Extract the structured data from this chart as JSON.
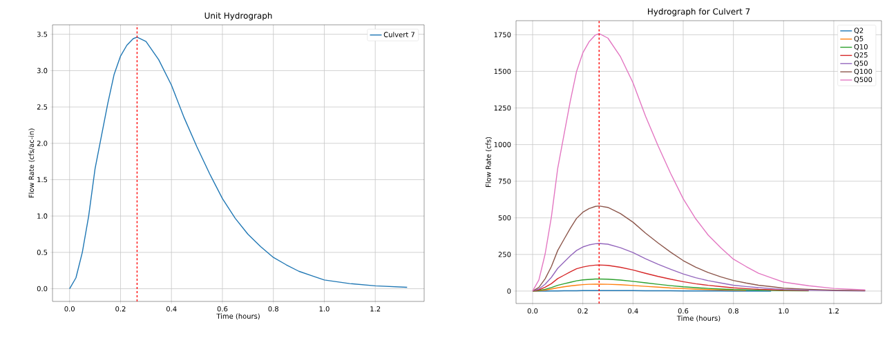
{
  "chart_data": [
    {
      "type": "line",
      "title": "Unit Hydrograph",
      "xlabel": "Time (hours)",
      "ylabel": "Flow Rate (cfs/ac-in)",
      "x": [
        0,
        0.025,
        0.05,
        0.075,
        0.1,
        0.125,
        0.15,
        0.175,
        0.2,
        0.225,
        0.25,
        0.265,
        0.3,
        0.35,
        0.4,
        0.45,
        0.5,
        0.55,
        0.6,
        0.65,
        0.7,
        0.75,
        0.8,
        0.85,
        0.9,
        0.95,
        1.0,
        1.1,
        1.2,
        1.325
      ],
      "series": [
        {
          "name": "Culvert 7",
          "color": "#1f77b4",
          "values": [
            0,
            0.15,
            0.5,
            1.0,
            1.65,
            2.1,
            2.55,
            2.95,
            3.2,
            3.35,
            3.44,
            3.46,
            3.4,
            3.15,
            2.8,
            2.35,
            1.95,
            1.58,
            1.24,
            0.97,
            0.75,
            0.58,
            0.43,
            0.33,
            0.24,
            0.18,
            0.12,
            0.07,
            0.04,
            0.02
          ]
        }
      ],
      "xlim": [
        -0.067,
        1.392
      ],
      "ylim": [
        -0.175,
        3.63
      ],
      "xticks": [
        {
          "value": 0,
          "label": "0.0"
        },
        {
          "value": 0.2,
          "label": "0.2"
        },
        {
          "value": 0.4,
          "label": "0.4"
        },
        {
          "value": 0.6,
          "label": "0.6"
        },
        {
          "value": 0.8,
          "label": "0.8"
        },
        {
          "value": 1.0,
          "label": "1.0"
        },
        {
          "value": 1.2,
          "label": "1.2"
        }
      ],
      "yticks": [
        {
          "value": 0,
          "label": "0.0"
        },
        {
          "value": 0.5,
          "label": "0.5"
        },
        {
          "value": 1.0,
          "label": "1.0"
        },
        {
          "value": 1.5,
          "label": "1.5"
        },
        {
          "value": 2.0,
          "label": "2.0"
        },
        {
          "value": 2.5,
          "label": "2.5"
        },
        {
          "value": 3.0,
          "label": "3.0"
        },
        {
          "value": 3.5,
          "label": "3.5"
        }
      ],
      "ref_lines": [
        {
          "axis": "x",
          "value": 0.265,
          "color": "#ff0000",
          "line_style": "dashed"
        }
      ],
      "grid": true,
      "legend": "top right"
    },
    {
      "type": "line",
      "title": "Hydrograph for Culvert 7",
      "xlabel": "Time (hours)",
      "ylabel": "Flow Rate (cfs)",
      "x": [
        0,
        0.025,
        0.05,
        0.075,
        0.1,
        0.125,
        0.15,
        0.175,
        0.2,
        0.225,
        0.25,
        0.265,
        0.3,
        0.35,
        0.4,
        0.45,
        0.5,
        0.55,
        0.6,
        0.65,
        0.7,
        0.75,
        0.8,
        0.85,
        0.9,
        0.95,
        1.0,
        1.1,
        1.2,
        1.325
      ],
      "series": [
        {
          "name": "Q2",
          "color": "#1f77b4",
          "values": [
            0,
            0,
            0,
            1,
            1,
            2,
            2,
            2,
            3,
            3,
            3,
            3,
            3,
            3,
            3,
            2,
            2,
            2,
            1,
            1,
            1,
            1,
            0,
            0,
            0,
            0,
            null,
            null,
            null,
            null
          ]
        },
        {
          "name": "Q5",
          "color": "#ff7f0e",
          "values": [
            0,
            2,
            7,
            14,
            22,
            29,
            35,
            40,
            44,
            46,
            47,
            47,
            46,
            43,
            38,
            32,
            27,
            21,
            17,
            13,
            10,
            8,
            6,
            4,
            null,
            null,
            null,
            null,
            null,
            null
          ]
        },
        {
          "name": "Q10",
          "color": "#2ca02c",
          "values": [
            0,
            4,
            12,
            24,
            39,
            50,
            60,
            70,
            76,
            79,
            82,
            82,
            81,
            75,
            66,
            56,
            46,
            37,
            29,
            23,
            18,
            14,
            10,
            8,
            6,
            4,
            3,
            2,
            null,
            null
          ]
        },
        {
          "name": "Q25",
          "color": "#d62728",
          "values": [
            0,
            8,
            26,
            51,
            85,
            108,
            131,
            152,
            164,
            172,
            177,
            178,
            175,
            162,
            144,
            121,
            100,
            81,
            64,
            50,
            39,
            30,
            22,
            17,
            12,
            9,
            6,
            4,
            null,
            null
          ]
        },
        {
          "name": "Q50",
          "color": "#9467bd",
          "values": [
            0,
            14,
            47,
            94,
            155,
            197,
            240,
            277,
            301,
            315,
            323,
            325,
            320,
            296,
            263,
            221,
            183,
            149,
            117,
            91,
            71,
            55,
            40,
            31,
            23,
            17,
            11,
            7,
            3,
            1
          ]
        },
        {
          "name": "Q100",
          "color": "#8c564b",
          "values": [
            0,
            25,
            84,
            168,
            277,
            353,
            428,
            496,
            538,
            563,
            578,
            581,
            571,
            529,
            470,
            395,
            328,
            265,
            208,
            163,
            126,
            97,
            72,
            55,
            40,
            30,
            20,
            12,
            6,
            3
          ]
        },
        {
          "name": "Q500",
          "color": "#e377c2",
          "values": [
            0,
            76,
            254,
            508,
            838,
            1067,
            1295,
            1499,
            1626,
            1702,
            1748,
            1758,
            1727,
            1600,
            1422,
            1194,
            991,
            803,
            630,
            493,
            381,
            295,
            218,
            168,
            122,
            91,
            61,
            36,
            18,
            8
          ]
        }
      ],
      "xlim": [
        -0.066,
        1.39
      ],
      "ylim": [
        -85,
        1846
      ],
      "xticks": [
        {
          "value": 0,
          "label": "0.0"
        },
        {
          "value": 0.2,
          "label": "0.2"
        },
        {
          "value": 0.4,
          "label": "0.4"
        },
        {
          "value": 0.6,
          "label": "0.6"
        },
        {
          "value": 0.8,
          "label": "0.8"
        },
        {
          "value": 1.0,
          "label": "1.0"
        },
        {
          "value": 1.2,
          "label": "1.2"
        }
      ],
      "yticks": [
        0,
        250,
        500,
        750,
        1000,
        1250,
        1500,
        1750
      ],
      "ref_lines": [
        {
          "axis": "x",
          "value": 0.265,
          "color": "#ff0000",
          "line_style": "dashed"
        }
      ],
      "grid": true,
      "legend": "top right"
    }
  ]
}
